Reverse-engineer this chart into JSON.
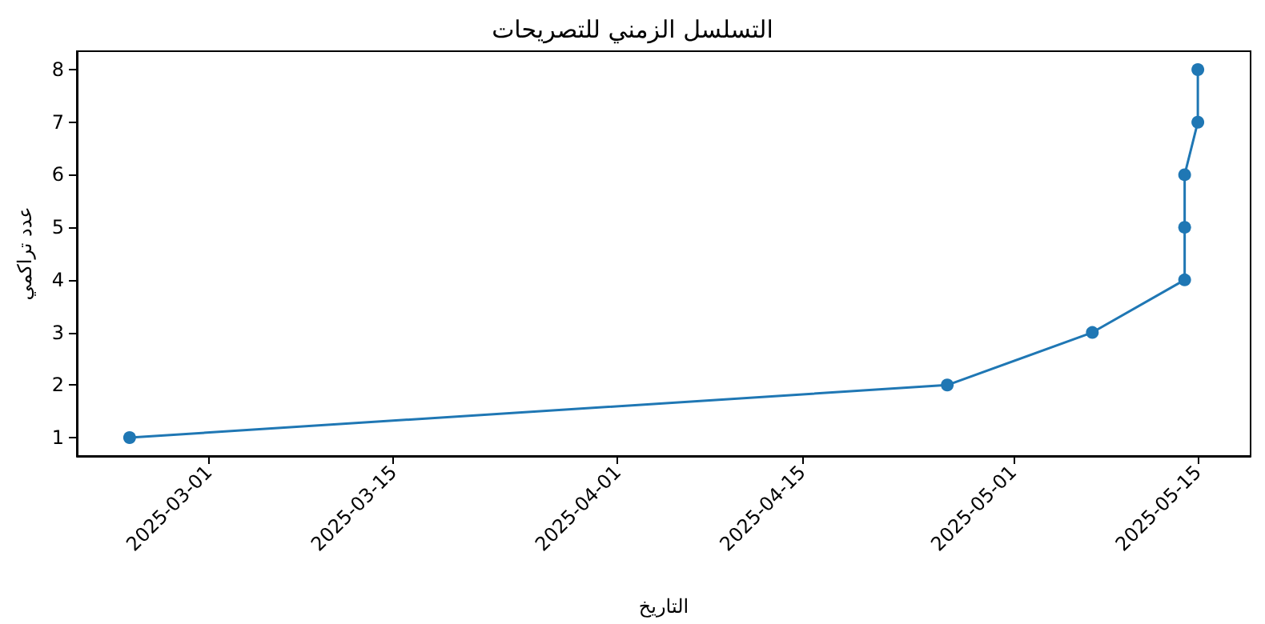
{
  "chart_data": {
    "type": "line",
    "title": "التسلسل الزمني للتصريحات",
    "xlabel": "التاريخ",
    "ylabel": "عدد تراكمي",
    "x": [
      "2025-02-23",
      "2025-04-26",
      "2025-05-07",
      "2025-05-14",
      "2025-05-14",
      "2025-05-14",
      "2025-05-15",
      "2025-05-15"
    ],
    "series": [
      {
        "color": "#1f77b4",
        "values": [
          1,
          2,
          3,
          4,
          5,
          6,
          7,
          8
        ]
      }
    ],
    "xlim": [
      "2025-02-19",
      "2025-05-19"
    ],
    "xticks": [
      "2025-03-01",
      "2025-03-15",
      "2025-04-01",
      "2025-04-15",
      "2025-05-01",
      "2025-05-15"
    ],
    "ylim": [
      0.65,
      8.35
    ],
    "yticks": [
      1,
      2,
      3,
      4,
      5,
      6,
      7,
      8
    ],
    "grid": false,
    "marker": "circle",
    "line_style": "solid"
  }
}
